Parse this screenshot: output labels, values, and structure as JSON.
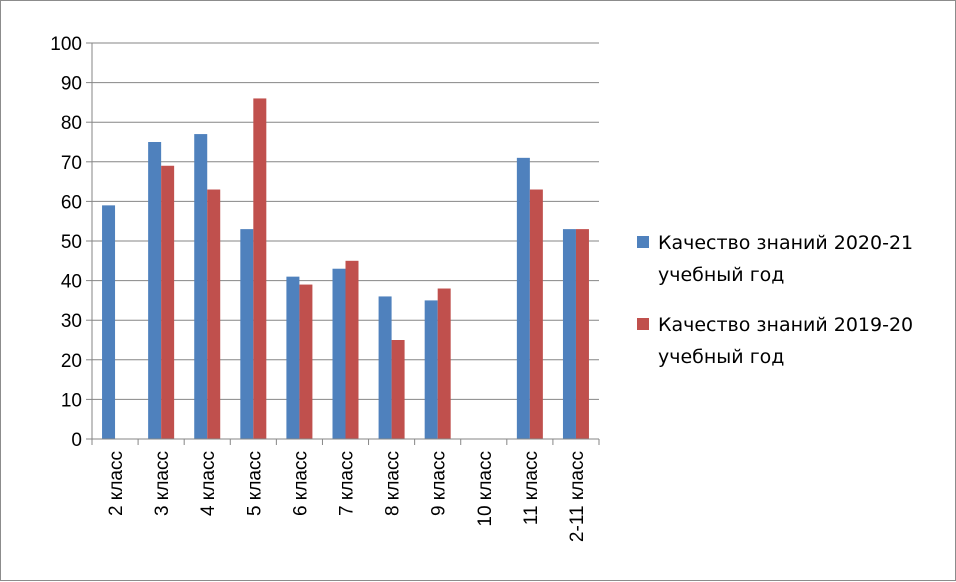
{
  "chart_data": {
    "type": "bar",
    "categories": [
      "2 класс",
      "3 класс",
      "4 класс",
      "5 класс",
      "6 класс",
      "7 класс",
      "8 класс",
      "9 класс",
      "10 класс",
      "11 класс",
      "2-11 класс"
    ],
    "series": [
      {
        "name": "Качество знаний 2020-21 учебный год",
        "legend_lines": [
          "Качество знаний 2020-21",
          "учебный год"
        ],
        "color": "#4f81bd",
        "values": [
          59,
          75,
          77,
          53,
          41,
          43,
          36,
          35,
          null,
          71,
          53
        ]
      },
      {
        "name": "Качество знаний 2019-20 учебный год",
        "legend_lines": [
          "Качество знаний 2019-20",
          "учебный год"
        ],
        "color": "#c0504d",
        "values": [
          null,
          69,
          63,
          86,
          39,
          45,
          25,
          38,
          null,
          63,
          53
        ]
      }
    ],
    "ylim": [
      0,
      100
    ],
    "yticks": [
      0,
      10,
      20,
      30,
      40,
      50,
      60,
      70,
      80,
      90,
      100
    ],
    "grid": true,
    "legend_position": "right"
  }
}
